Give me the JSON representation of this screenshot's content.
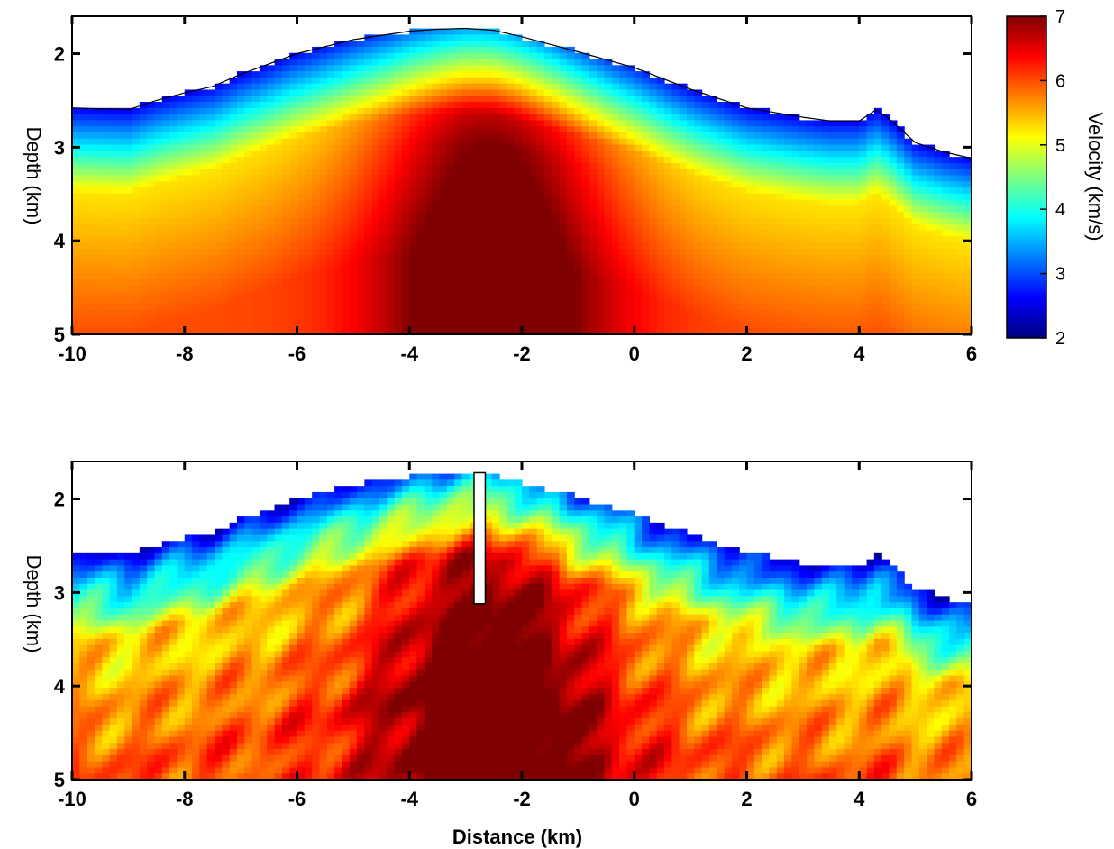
{
  "chart_data": [
    {
      "type": "heatmap",
      "id": "top",
      "title": "",
      "xlabel": "",
      "ylabel": "Depth (km)",
      "xlim": [
        -10,
        6
      ],
      "ylim": [
        5,
        1.6
      ],
      "y_inverted": true,
      "xticks": [
        -10,
        -8,
        -6,
        -4,
        -2,
        0,
        2,
        4,
        6
      ],
      "yticks": [
        2,
        3,
        4,
        5
      ],
      "value_unit": "km/s",
      "surface_profile": {
        "x": [
          -10,
          -9,
          -8.5,
          -8,
          -7.5,
          -7,
          -6,
          -5,
          -4,
          -3.5,
          -3,
          -2.5,
          -2,
          -1,
          0,
          1,
          2,
          3,
          3.5,
          4,
          4.3,
          4.5,
          5,
          5.5,
          6
        ],
        "depth": [
          2.58,
          2.6,
          2.5,
          2.42,
          2.35,
          2.22,
          2.0,
          1.85,
          1.76,
          1.74,
          1.73,
          1.75,
          1.82,
          1.98,
          2.15,
          2.38,
          2.58,
          2.68,
          2.72,
          2.72,
          2.6,
          2.68,
          2.95,
          3.05,
          3.12
        ]
      },
      "high_velocity_core_x": -2.5,
      "colorbar": {
        "label": "Velocity (km/s)",
        "vmin": 2,
        "vmax": 7,
        "ticks": [
          2,
          3,
          4,
          5,
          6,
          7
        ],
        "colormap": "jet"
      },
      "grid": false
    },
    {
      "type": "heatmap",
      "id": "bottom",
      "title": "",
      "xlabel": "Distance (km)",
      "ylabel": "Depth (km)",
      "xlim": [
        -10,
        6
      ],
      "ylim": [
        5,
        1.6
      ],
      "y_inverted": true,
      "xticks": [
        -10,
        -8,
        -6,
        -4,
        -2,
        0,
        2,
        4,
        6
      ],
      "yticks": [
        2,
        3,
        4,
        5
      ],
      "value_unit": "km/s",
      "surface_profile": {
        "x": [
          -10,
          -9,
          -8.5,
          -8,
          -7.5,
          -7,
          -6,
          -5,
          -4,
          -3.5,
          -3,
          -2.5,
          -2,
          -1,
          0,
          1,
          2,
          3,
          3.5,
          4,
          4.3,
          4.5,
          5,
          5.5,
          6
        ],
        "depth": [
          2.58,
          2.6,
          2.5,
          2.42,
          2.35,
          2.22,
          2.0,
          1.85,
          1.76,
          1.74,
          1.73,
          1.75,
          1.82,
          1.98,
          2.15,
          2.38,
          2.58,
          2.68,
          2.72,
          2.72,
          2.6,
          2.68,
          2.95,
          3.05,
          3.12
        ]
      },
      "high_velocity_core_x": -2.5,
      "well": {
        "x_min": -2.85,
        "x_max": -2.65,
        "depth_top": 1.72,
        "depth_bottom": 3.12
      },
      "grid": false
    }
  ],
  "colors": {
    "jet": [
      "#00007f",
      "#0000ff",
      "#007fff",
      "#00ffff",
      "#7fff7f",
      "#ffff00",
      "#ff7f00",
      "#ff0000",
      "#7f0000"
    ],
    "frame": "#000000",
    "well_fill": "#ffffff"
  }
}
